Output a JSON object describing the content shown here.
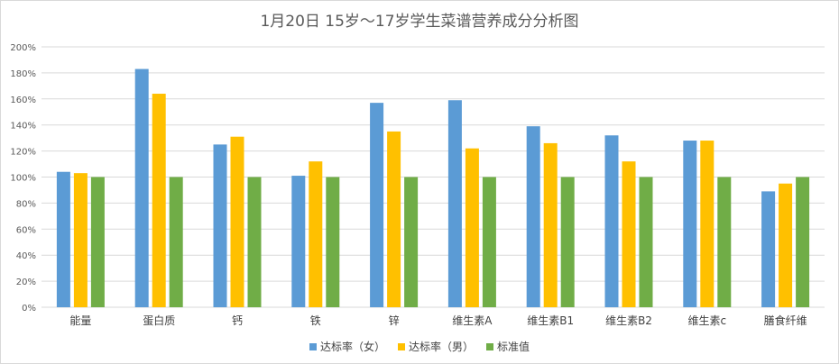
{
  "chart_data": {
    "type": "bar",
    "title": "1月20日 15岁～17岁学生菜谱营养成分分析图",
    "categories": [
      "能量",
      "蛋白质",
      "钙",
      "铁",
      "锌",
      "维生素A",
      "维生素B1",
      "维生素B2",
      "维生素c",
      "膳食纤维"
    ],
    "series": [
      {
        "name": "达标率（女）",
        "color": "#5b9bd5",
        "values": [
          104,
          183,
          125,
          101,
          157,
          159,
          139,
          132,
          128,
          89
        ]
      },
      {
        "name": "达标率（男）",
        "color": "#ffc000",
        "values": [
          103,
          164,
          131,
          112,
          135,
          122,
          126,
          112,
          128,
          95
        ]
      },
      {
        "name": "标准值",
        "color": "#70ad47",
        "values": [
          100,
          100,
          100,
          100,
          100,
          100,
          100,
          100,
          100,
          100
        ]
      }
    ],
    "ylim": [
      0,
      200
    ],
    "ytick_step": 20,
    "ytick_labels": [
      "0%",
      "20%",
      "40%",
      "60%",
      "80%",
      "100%",
      "120%",
      "140%",
      "160%",
      "180%",
      "200%"
    ],
    "grid": true,
    "legend_position": "bottom",
    "xlabel": "",
    "ylabel": ""
  }
}
